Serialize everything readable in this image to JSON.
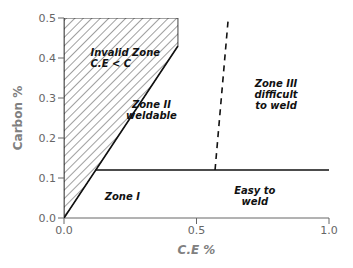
{
  "chart_data": {
    "type": "line",
    "xlabel": "C.E %",
    "ylabel": "Carbon %",
    "xlim": [
      0,
      1.0
    ],
    "ylim": [
      0,
      0.5
    ],
    "xticks": [
      {
        "value": 0,
        "label": "0.0"
      },
      0.5,
      {
        "value": 1.0,
        "label": "1.0"
      }
    ],
    "yticks": [
      {
        "value": 0,
        "label": "0.0"
      },
      0.1,
      0.2,
      0.3,
      0.4,
      0.5
    ],
    "grid": false,
    "series": [
      {
        "type": "polygon",
        "x": [
          0,
          0,
          0.43,
          0.43
        ],
        "values": [
          0,
          0.5,
          0.5,
          0.43
        ],
        "color": "#111111"
      },
      {
        "type": "line",
        "x": [
          0.0,
          0.43
        ],
        "values": [
          0.0,
          0.43
        ],
        "color": "#111111",
        "line_style": "solid"
      },
      {
        "type": "line",
        "x": [
          0.12,
          1.0
        ],
        "values": [
          0.12,
          0.12
        ],
        "color": "#111111",
        "line_style": "solid"
      },
      {
        "type": "line",
        "x": [
          0.57,
          0.62
        ],
        "values": [
          0.12,
          0.5
        ],
        "color": "#111111",
        "line_style": "dashed"
      }
    ],
    "annotations": [
      {
        "text": "Invalid Zone\nC.E < C",
        "x": 0.1,
        "y": 0.4
      },
      {
        "text": "Zone II\nweldable",
        "x": 0.33,
        "y": 0.27
      },
      {
        "text": "Zone III\ndifficult\nto weld",
        "x": 0.8,
        "y": 0.31
      },
      {
        "text": "Zone I",
        "x": 0.22,
        "y": 0.055
      },
      {
        "text": "Easy to\nweld",
        "x": 0.72,
        "y": 0.055
      }
    ]
  }
}
